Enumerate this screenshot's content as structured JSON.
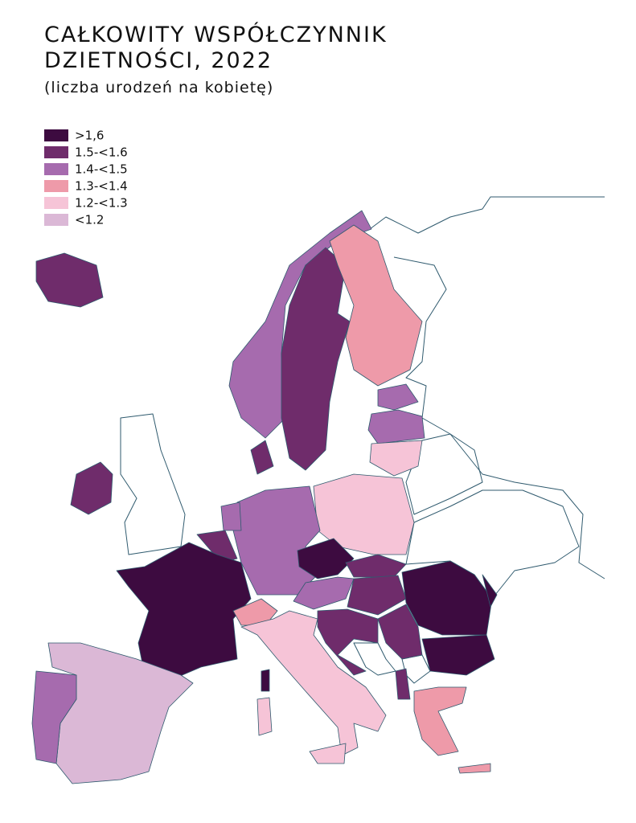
{
  "title_lines": [
    "CAŁKOWITY WSPÓŁCZYNNIK",
    "DZIETNOŚCI, 2022"
  ],
  "subtitle": "(liczba urodzeń na kobietę)",
  "legend": [
    {
      "label": ">1,6",
      "color": "#3d0b40"
    },
    {
      "label": "1.5-<1.6",
      "color": "#6f2c6b"
    },
    {
      "label": "1.4-<1.5",
      "color": "#a66bae"
    },
    {
      "label": "1.3-<1.4",
      "color": "#ee9aa9"
    },
    {
      "label": "1.2-<1.3",
      "color": "#f6c4d7"
    },
    {
      "label": "<1.2",
      "color": "#dbb8d6"
    }
  ]
}
